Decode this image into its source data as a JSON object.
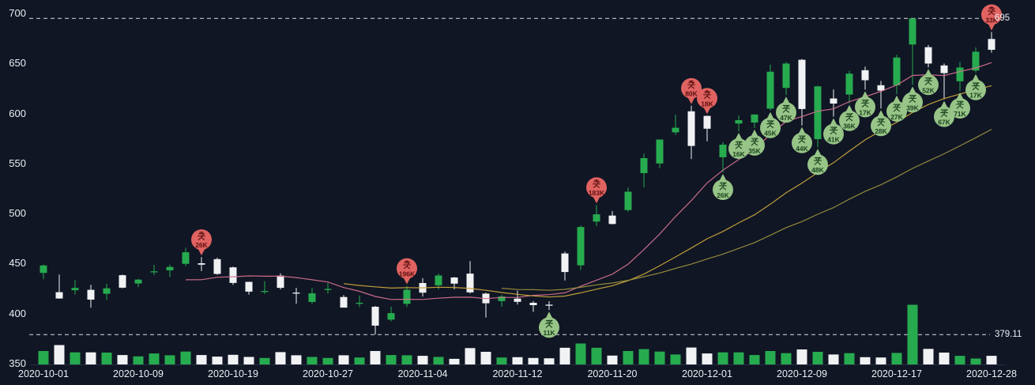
{
  "chart_data": {
    "type": "candlestick",
    "title": "",
    "ylim": [
      350,
      700
    ],
    "grid": false,
    "y_ticks": [
      700,
      650,
      600,
      550,
      500,
      450,
      400,
      350
    ],
    "x_ticks": [
      {
        "index": 0,
        "label": "2020-10-01"
      },
      {
        "index": 6,
        "label": "2020-10-09"
      },
      {
        "index": 12,
        "label": "2020-10-19"
      },
      {
        "index": 18,
        "label": "2020-10-27"
      },
      {
        "index": 24,
        "label": "2020-11-04"
      },
      {
        "index": 30,
        "label": "2020-11-12"
      },
      {
        "index": 36,
        "label": "2020-11-20"
      },
      {
        "index": 42,
        "label": "2020-12-01"
      },
      {
        "index": 48,
        "label": "2020-12-09"
      },
      {
        "index": 54,
        "label": "2020-12-17"
      },
      {
        "index": 60,
        "label": "2020-12-28"
      }
    ],
    "reference_lines": [
      {
        "value": 695,
        "label": "695"
      },
      {
        "value": 379.11,
        "label": "379.11"
      }
    ],
    "colors": {
      "background": "#101624",
      "up": "#27ab4f",
      "down": "#f1f2f4",
      "axis_text": "#eceef2",
      "reference": "#d9dbe0",
      "marker_sell_fill": "#e06361",
      "marker_sell_text": "#5c1010",
      "marker_buy_fill": "#97c487",
      "marker_buy_text": "#1b431f"
    },
    "moving_averages": [
      {
        "window": 10,
        "color": "#d4708e"
      },
      {
        "window": 20,
        "color": "#c9a43c"
      },
      {
        "window": 30,
        "color": "#9a8f3d"
      }
    ],
    "marker_labels": {
      "buy": "买",
      "sell": "卖"
    },
    "markers": [
      {
        "index": 10,
        "date": "2020-10-15",
        "side": "sell",
        "label": "卖",
        "amount": "26K"
      },
      {
        "index": 23,
        "date": "2020-11-03",
        "side": "sell",
        "label": "卖",
        "amount": "196K"
      },
      {
        "index": 35,
        "date": "2020-11-19",
        "side": "sell",
        "label": "卖",
        "amount": "183K"
      },
      {
        "index": 41,
        "date": "2020-11-30",
        "side": "sell",
        "label": "卖",
        "amount": "80K"
      },
      {
        "index": 42,
        "date": "2020-12-01",
        "side": "sell",
        "label": "卖",
        "amount": "18K"
      },
      {
        "index": 60,
        "date": "2020-12-28",
        "side": "sell",
        "label": "卖",
        "amount": "33K"
      },
      {
        "index": 32,
        "date": "2020-11-16",
        "side": "buy",
        "label": "买",
        "amount": "11K"
      },
      {
        "index": 43,
        "date": "2020-12-02",
        "side": "buy",
        "label": "买",
        "amount": "26K"
      },
      {
        "index": 44,
        "date": "2020-12-03",
        "side": "buy",
        "label": "买",
        "amount": "16K"
      },
      {
        "index": 45,
        "date": "2020-12-04",
        "side": "buy",
        "label": "买",
        "amount": "35K"
      },
      {
        "index": 46,
        "date": "2020-12-07",
        "side": "buy",
        "label": "买",
        "amount": "45K"
      },
      {
        "index": 47,
        "date": "2020-12-08",
        "side": "buy",
        "label": "买",
        "amount": "47K"
      },
      {
        "index": 48,
        "date": "2020-12-09",
        "side": "buy",
        "label": "买",
        "amount": "44K"
      },
      {
        "index": 49,
        "date": "2020-12-10",
        "side": "buy",
        "label": "买",
        "amount": "48K"
      },
      {
        "index": 50,
        "date": "2020-12-11",
        "side": "buy",
        "label": "买",
        "amount": "41K"
      },
      {
        "index": 51,
        "date": "2020-12-14",
        "side": "buy",
        "label": "买",
        "amount": "36K"
      },
      {
        "index": 52,
        "date": "2020-12-15",
        "side": "buy",
        "label": "买",
        "amount": "17K"
      },
      {
        "index": 53,
        "date": "2020-12-16",
        "side": "buy",
        "label": "买",
        "amount": "28K"
      },
      {
        "index": 54,
        "date": "2020-12-17",
        "side": "buy",
        "label": "买",
        "amount": "27K"
      },
      {
        "index": 55,
        "date": "2020-12-18",
        "side": "buy",
        "label": "买",
        "amount": "39K"
      },
      {
        "index": 56,
        "date": "2020-12-21",
        "side": "buy",
        "label": "买",
        "amount": "52K"
      },
      {
        "index": 57,
        "date": "2020-12-22",
        "side": "buy",
        "label": "买",
        "amount": "67K"
      },
      {
        "index": 58,
        "date": "2020-12-23",
        "side": "buy",
        "label": "买",
        "amount": "71K"
      },
      {
        "index": 59,
        "date": "2020-12-24",
        "side": "buy",
        "label": "买",
        "amount": "17K"
      }
    ],
    "series": {
      "dates": [
        "2020-10-01",
        "2020-10-02",
        "2020-10-05",
        "2020-10-06",
        "2020-10-07",
        "2020-10-08",
        "2020-10-09",
        "2020-10-12",
        "2020-10-13",
        "2020-10-14",
        "2020-10-15",
        "2020-10-16",
        "2020-10-19",
        "2020-10-20",
        "2020-10-21",
        "2020-10-22",
        "2020-10-23",
        "2020-10-26",
        "2020-10-27",
        "2020-10-28",
        "2020-10-29",
        "2020-10-30",
        "2020-11-02",
        "2020-11-03",
        "2020-11-04",
        "2020-11-05",
        "2020-11-06",
        "2020-11-09",
        "2020-11-10",
        "2020-11-11",
        "2020-11-12",
        "2020-11-13",
        "2020-11-16",
        "2020-11-17",
        "2020-11-18",
        "2020-11-19",
        "2020-11-20",
        "2020-11-23",
        "2020-11-24",
        "2020-11-25",
        "2020-11-27",
        "2020-11-30",
        "2020-12-01",
        "2020-12-02",
        "2020-12-03",
        "2020-12-04",
        "2020-12-07",
        "2020-12-08",
        "2020-12-09",
        "2020-12-10",
        "2020-12-11",
        "2020-12-14",
        "2020-12-15",
        "2020-12-16",
        "2020-12-17",
        "2020-12-18",
        "2020-12-21",
        "2020-12-22",
        "2020-12-23",
        "2020-12-24",
        "2020-12-28"
      ],
      "open": [
        440.76,
        421.39,
        423.35,
        423.79,
        419.87,
        438.44,
        430.13,
        442.0,
        443.35,
        449.78,
        450.31,
        454.44,
        446.24,
        431.75,
        422.63,
        438.0,
        421.0,
        411.63,
        423.76,
        416.62,
        409.96,
        406.9,
        394.0,
        409.73,
        430.62,
        428.3,
        436.1,
        440.0,
        420.0,
        412.5,
        415.0,
        410.85,
        408.97,
        460.17,
        448.35,
        492.0,
        497.99,
        503.5,
        540.4,
        550.06,
        581.16,
        602.21,
        597.59,
        556.24,
        590.02,
        591.01,
        604.87,
        625.51,
        653.69,
        574.37,
        615.01,
        619.0,
        643.29,
        628.23,
        628.19,
        668.9,
        666.24,
        648.0,
        632.2,
        642.99,
        674.51
      ],
      "high": [
        448.88,
        439.13,
        433.64,
        428.78,
        429.9,
        439.0,
        434.59,
        448.74,
        448.89,
        465.9,
        456.57,
        455.95,
        447.0,
        431.75,
        432.3,
        440.3,
        425.76,
        425.76,
        430.5,
        418.6,
        418.18,
        407.59,
        406.98,
        427.77,
        435.4,
        440.0,
        436.57,
        452.5,
        420.86,
        418.68,
        423.0,
        412.53,
        412.38,
        462.0,
        488.0,
        508.61,
        502.5,
        526.0,
        559.99,
        574.0,
        598.78,
        607.8,
        597.85,
        571.46,
        598.05,
        599.04,
        648.79,
        651.5,
        654.32,
        627.75,
        624.0,
        642.75,
        646.9,
        632.5,
        658.82,
        695.0,
        668.5,
        649.88,
        651.5,
        666.09,
        681.4
      ],
      "low": [
        434.42,
        415.0,
        419.07,
        406.05,
        413.84,
        425.3,
        426.46,
        438.58,
        436.6,
        447.35,
        442.5,
        438.85,
        428.87,
        419.05,
        419.75,
        424.15,
        410.0,
        410.0,
        420.1,
        406.0,
        406.46,
        379.11,
        392.3,
        406.69,
        417.1,
        424.0,
        424.28,
        420.0,
        396.03,
        406.88,
        409.0,
        401.66,
        403.6,
        433.01,
        443.5,
        487.57,
        489.06,
        501.79,
        526.2,
        545.37,
        578.45,
        554.51,
        572.05,
        541.21,
        582.27,
        585.5,
        603.05,
        618.5,
        588.0,
        566.34,
        596.8,
        610.2,
        623.8,
        605.0,
        619.5,
        628.54,
        646.07,
        614.23,
        622.57,
        641.0,
        660.8
      ],
      "close": [
        448.16,
        415.09,
        425.68,
        413.98,
        425.3,
        425.92,
        434.0,
        442.3,
        446.65,
        461.3,
        448.88,
        439.67,
        430.64,
        421.94,
        422.64,
        425.79,
        420.63,
        420.28,
        424.68,
        406.02,
        410.83,
        388.04,
        400.51,
        423.9,
        420.98,
        438.09,
        429.95,
        421.26,
        410.36,
        417.13,
        411.76,
        408.5,
        408.09,
        441.61,
        486.64,
        499.27,
        489.61,
        521.85,
        555.38,
        574.0,
        585.76,
        567.6,
        584.76,
        568.82,
        593.38,
        599.04,
        641.76,
        649.88,
        604.48,
        627.07,
        609.99,
        639.83,
        633.25,
        622.77,
        655.9,
        695.0,
        649.86,
        640.34,
        645.98,
        661.77,
        663.69
      ],
      "volume": [
        50,
        72,
        45,
        45,
        44,
        35,
        30,
        41,
        34,
        48,
        35,
        29,
        36,
        28,
        24,
        46,
        34,
        28,
        24,
        34,
        26,
        50,
        35,
        34,
        32,
        28,
        21,
        61,
        47,
        26,
        27,
        24,
        23,
        62,
        78,
        62,
        33,
        50,
        57,
        48,
        37,
        63,
        41,
        45,
        45,
        35,
        50,
        42,
        56,
        47,
        37,
        42,
        27,
        26,
        43,
        222,
        58,
        44,
        32,
        22,
        32
      ]
    }
  }
}
